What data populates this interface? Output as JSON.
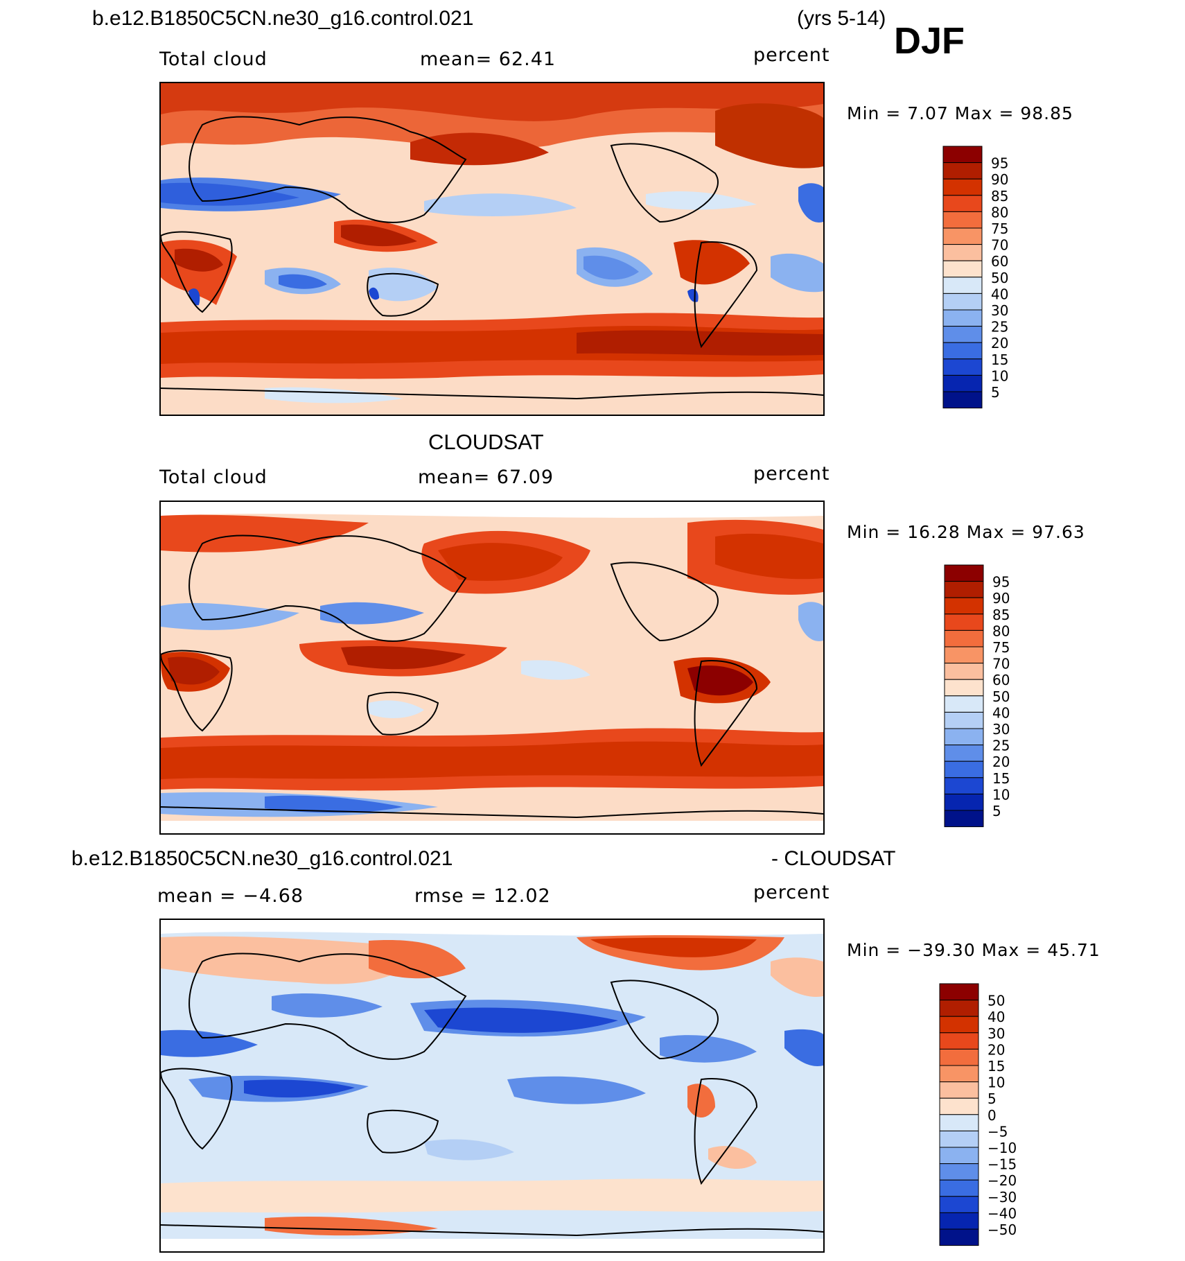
{
  "header": {
    "case_name": "b.e12.B1850C5CN.ne30_g16.control.021",
    "years": "(yrs 5-14)",
    "season": "DJF"
  },
  "panels": [
    {
      "id": "model",
      "title": "",
      "left_label": "Total cloud",
      "stat1": "mean=  62.41",
      "units": "percent",
      "minmax": "Min =   7.07 Max =  98.85",
      "legend_labels": [
        "95",
        "90",
        "85",
        "80",
        "75",
        "70",
        "60",
        "50",
        "40",
        "30",
        "25",
        "20",
        "15",
        "10",
        "5"
      ],
      "legend_colors": [
        "#8c0000",
        "#b01e00",
        "#d33200",
        "#e8481c",
        "#f26d3d",
        "#f89465",
        "#fbbf9f",
        "#fde2cd",
        "#d8e8f8",
        "#b4cff5",
        "#8bb2f0",
        "#5f8ee9",
        "#3a6de2",
        "#1c47d2",
        "#0625b0",
        "#00128a"
      ]
    },
    {
      "id": "obs",
      "title": "CLOUDSAT",
      "left_label": "Total cloud",
      "stat1": "mean=  67.09",
      "units": "percent",
      "minmax": "Min =  16.28 Max =  97.63",
      "legend_labels": [
        "95",
        "90",
        "85",
        "80",
        "75",
        "70",
        "60",
        "50",
        "40",
        "30",
        "25",
        "20",
        "15",
        "10",
        "5"
      ],
      "legend_colors": [
        "#8c0000",
        "#b01e00",
        "#d33200",
        "#e8481c",
        "#f26d3d",
        "#f89465",
        "#fbbf9f",
        "#fde2cd",
        "#d8e8f8",
        "#b4cff5",
        "#8bb2f0",
        "#5f8ee9",
        "#3a6de2",
        "#1c47d2",
        "#0625b0",
        "#00128a"
      ]
    },
    {
      "id": "diff",
      "title_left": "b.e12.B1850C5CN.ne30_g16.control.021",
      "title_right": "- CLOUDSAT",
      "stat0": "mean =  −4.68",
      "stat1": "rmse =  12.02",
      "units": "percent",
      "minmax": "Min = −39.30 Max =  45.71",
      "legend_labels": [
        "50",
        "40",
        "30",
        "20",
        "15",
        "10",
        "5",
        "0",
        "−5",
        "−10",
        "−15",
        "−20",
        "−30",
        "−40",
        "−50"
      ],
      "legend_colors": [
        "#8c0000",
        "#b01e00",
        "#d33200",
        "#e8481c",
        "#f26d3d",
        "#f89465",
        "#fbbf9f",
        "#fde2cd",
        "#d8e8f8",
        "#b4cff5",
        "#8bb2f0",
        "#5f8ee9",
        "#3a6de2",
        "#1c47d2",
        "#0625b0",
        "#00128a"
      ]
    }
  ]
}
